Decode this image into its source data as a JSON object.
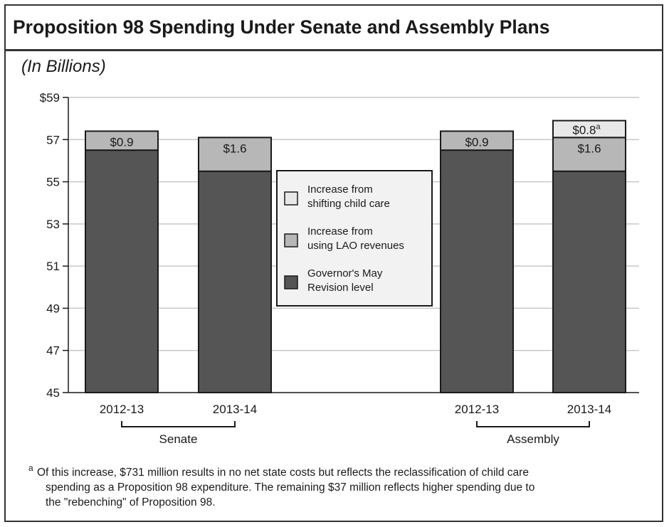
{
  "title": "Proposition 98 Spending Under Senate and Assembly Plans",
  "subtitle": "(In Billions)",
  "colors": {
    "governor": "#555555",
    "lao": "#b7b7b7",
    "childcare": "#e8e8e8",
    "grid": "#c8c8c8",
    "axis": "#1a1a1a"
  },
  "chart_data": {
    "type": "bar",
    "stacked": true,
    "y_axis": {
      "min": 45,
      "max": 59,
      "ticks": [
        {
          "value": 45,
          "label": "45"
        },
        {
          "value": 47,
          "label": "47"
        },
        {
          "value": 49,
          "label": "49"
        },
        {
          "value": 51,
          "label": "51"
        },
        {
          "value": 53,
          "label": "53"
        },
        {
          "value": 55,
          "label": "55"
        },
        {
          "value": 57,
          "label": "57"
        },
        {
          "value": 59,
          "label": "$59"
        }
      ],
      "grid": true
    },
    "groups": [
      {
        "label": "Senate",
        "categories": [
          "2012-13",
          "2013-14"
        ]
      },
      {
        "label": "Assembly",
        "categories": [
          "2012-13",
          "2013-14"
        ]
      }
    ],
    "bars": [
      {
        "group": "Senate",
        "category": "2012-13",
        "governor": 56.5,
        "lao": 0.9,
        "childcare": 0,
        "labels": {
          "lao": "$0.9"
        }
      },
      {
        "group": "Senate",
        "category": "2013-14",
        "governor": 55.5,
        "lao": 1.6,
        "childcare": 0,
        "labels": {
          "lao": "$1.6"
        }
      },
      {
        "group": "Assembly",
        "category": "2012-13",
        "governor": 56.5,
        "lao": 0.9,
        "childcare": 0,
        "labels": {
          "lao": "$0.9"
        }
      },
      {
        "group": "Assembly",
        "category": "2013-14",
        "governor": 55.5,
        "lao": 1.6,
        "childcare": 0.8,
        "labels": {
          "lao": "$1.6",
          "childcare": "$0.8",
          "childcare_sup": "a"
        }
      }
    ],
    "legend": {
      "position": "center",
      "entries": [
        {
          "key": "childcare",
          "line1": "Increase from",
          "line2": "shifting child care"
        },
        {
          "key": "lao",
          "line1": "Increase from",
          "line2": "using LAO revenues"
        },
        {
          "key": "governor",
          "line1": "Governor's May",
          "line2": "Revision level"
        }
      ]
    }
  },
  "footnote": {
    "marker": "a",
    "lines": [
      "Of this increase, $731 million results in no net state costs but reflects the reclassification of child care",
      "spending as a Proposition 98 expenditure. The remaining $37 million reflects higher spending due to",
      "the \"rebenching\" of Proposition 98."
    ]
  }
}
